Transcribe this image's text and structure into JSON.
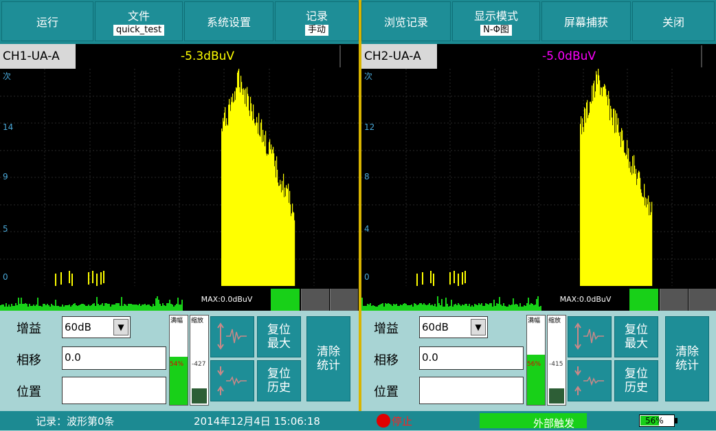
{
  "menu": {
    "run": "运行",
    "file": {
      "label": "文件",
      "value": "quick_test"
    },
    "settings": "系统设置",
    "record": {
      "label": "记录",
      "value": "手动"
    },
    "browse": "浏览记录",
    "display": {
      "label": "显示模式",
      "value": "N-Φ图"
    },
    "capture": "屏幕捕获",
    "close": "关闭"
  },
  "channels": [
    {
      "name": "CH1-UA-A",
      "value": "-5.3dBuV",
      "value_color": "#ffff00",
      "y_ticks": [
        "次",
        "14",
        "9",
        "5",
        "0"
      ],
      "max_text": "MAX:0.0dBuV",
      "gain_label": "增益",
      "gain_value": "60dB",
      "phase_label": "相移",
      "phase_value": "0.0",
      "position_label": "位置",
      "position_value": "",
      "meter1_title": "满幅",
      "meter1_pct": "54%",
      "meter1_fraction": 0.54,
      "meter2_title": "缩放",
      "meter2_value": "-427",
      "reset_max": [
        "复位",
        "最大"
      ],
      "reset_hist": [
        "复位",
        "历史"
      ],
      "clear_stats": [
        "清除",
        "统计"
      ]
    },
    {
      "name": "CH2-UA-A",
      "value": "-5.0dBuV",
      "value_color": "#ff00ff",
      "y_ticks": [
        "次",
        "12",
        "8",
        "4",
        "0"
      ],
      "max_text": "MAX:0.0dBuV",
      "gain_label": "增益",
      "gain_value": "60dB",
      "phase_label": "相移",
      "phase_value": "0.0",
      "position_label": "位置",
      "position_value": "",
      "meter1_title": "满幅",
      "meter1_pct": "56%",
      "meter1_fraction": 0.56,
      "meter2_title": "缩放",
      "meter2_value": "-415",
      "reset_max": [
        "复位",
        "最大"
      ],
      "reset_hist": [
        "复位",
        "历史"
      ],
      "clear_stats": [
        "清除",
        "统计"
      ]
    }
  ],
  "status": {
    "record": "记录：波形第0条",
    "datetime": "2014年12月4日 15:06:18",
    "stop": "停止",
    "trigger": "外部触发",
    "battery": "56%",
    "battery_fraction": 0.56
  }
}
